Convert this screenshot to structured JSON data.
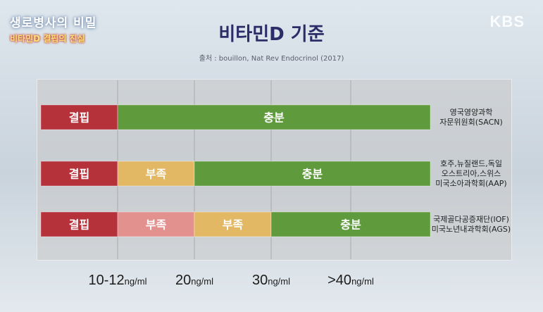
{
  "branding": {
    "program_title": "생로병사의 비밀",
    "episode_title": "비타민D 결핍의 진실",
    "broadcaster": "KBS"
  },
  "heading": {
    "title": "비타민D 기준",
    "source": "출처 : bouillon, Nat Rev Endocrinol (2017)"
  },
  "colors": {
    "deficient": "#b5323a",
    "insufficient_light": "#e3918f",
    "insufficient": "#e3b865",
    "sufficient": "#5f9b3c",
    "guide_line": "#a9a9a9"
  },
  "chart_data": {
    "type": "bar",
    "orientation": "horizontal-stacked-ranges",
    "unit": "ng/ml",
    "ticks": [
      {
        "value": 11,
        "number": "10-12",
        "unit": "ng/ml"
      },
      {
        "value": 20,
        "number": "20",
        "unit": "ng/ml"
      },
      {
        "value": 30,
        "number": "30",
        "unit": "ng/ml"
      },
      {
        "value": 40,
        "number": ">40",
        "unit": "ng/ml"
      }
    ],
    "rows": [
      {
        "reference": [
          "영국영양과학",
          "자문위원회(SACN)"
        ],
        "segments": [
          {
            "label": "결핍",
            "from": 0,
            "to": 11,
            "color": "#b5323a"
          },
          {
            "label": "충분",
            "from": 11,
            "to": 50,
            "color": "#5f9b3c"
          }
        ]
      },
      {
        "reference": [
          "호주,뉴질랜드,독일",
          "오스트리아,스위스",
          "미국소아과학회(AAP)"
        ],
        "segments": [
          {
            "label": "결핍",
            "from": 0,
            "to": 11,
            "color": "#b5323a"
          },
          {
            "label": "부족",
            "from": 11,
            "to": 20,
            "color": "#e3b865"
          },
          {
            "label": "충분",
            "from": 20,
            "to": 50,
            "color": "#5f9b3c"
          }
        ]
      },
      {
        "reference": [
          "국제골다공증재단(IOF)",
          "미국노년내과학회(AGS)"
        ],
        "segments": [
          {
            "label": "결핍",
            "from": 0,
            "to": 11,
            "color": "#b5323a"
          },
          {
            "label": "부족",
            "from": 11,
            "to": 20,
            "color": "#e3918f"
          },
          {
            "label": "부족",
            "from": 20,
            "to": 30,
            "color": "#e3b865"
          },
          {
            "label": "충분",
            "from": 30,
            "to": 50,
            "color": "#5f9b3c"
          }
        ]
      }
    ]
  }
}
